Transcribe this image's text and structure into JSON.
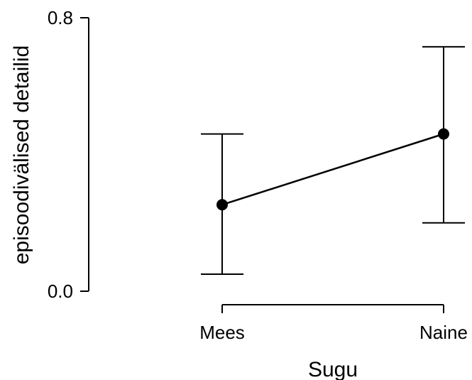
{
  "chart_data": {
    "type": "line",
    "xlabel": "Sugu",
    "ylabel": "episoodivälised detailid",
    "categories": [
      "Mees",
      "Naine"
    ],
    "series": [
      {
        "values": [
          0.253,
          0.46
        ],
        "error_low": [
          0.05,
          0.2
        ],
        "error_high": [
          0.46,
          0.715
        ]
      }
    ],
    "ylim": [
      0,
      0.8
    ],
    "y_ticks": [
      "0.0",
      "0.8"
    ],
    "grid": false,
    "legend": "none",
    "colors": {
      "line": "#000000",
      "marker": "#000000"
    }
  }
}
